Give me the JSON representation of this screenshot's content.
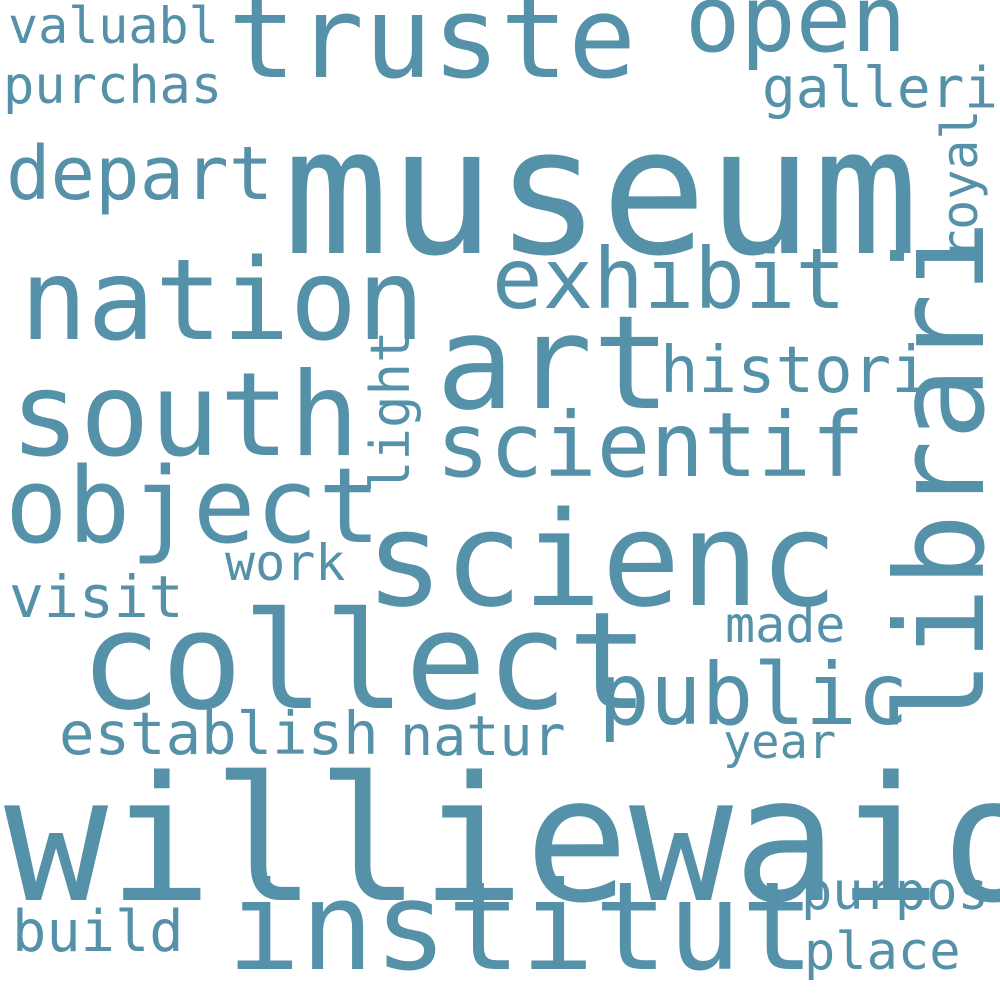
{
  "word_cloud": {
    "color": "#5591a8",
    "background": "#ffffff",
    "words": {
      "museum": "museum",
      "williewaiola": "williewaiola",
      "collect": "collect",
      "institut": "institut",
      "scienc": "scienc",
      "librari": "librari",
      "nation": "nation",
      "south": "south",
      "art": "art",
      "truste": "truste",
      "object": "object",
      "scientif": "scientif",
      "open": "open",
      "exhibit": "exhibit",
      "public": "public",
      "depart": "depart",
      "histori": "histori",
      "establish": "establish",
      "natur": "natur",
      "visit": "visit",
      "purchas": "purchas",
      "valuabl": "valuabl",
      "galleri": "galleri",
      "build": "build",
      "purpos": "purpos",
      "place": "place",
      "made": "made",
      "year": "year",
      "work": "work",
      "light": "light",
      "royal": "royal"
    }
  }
}
